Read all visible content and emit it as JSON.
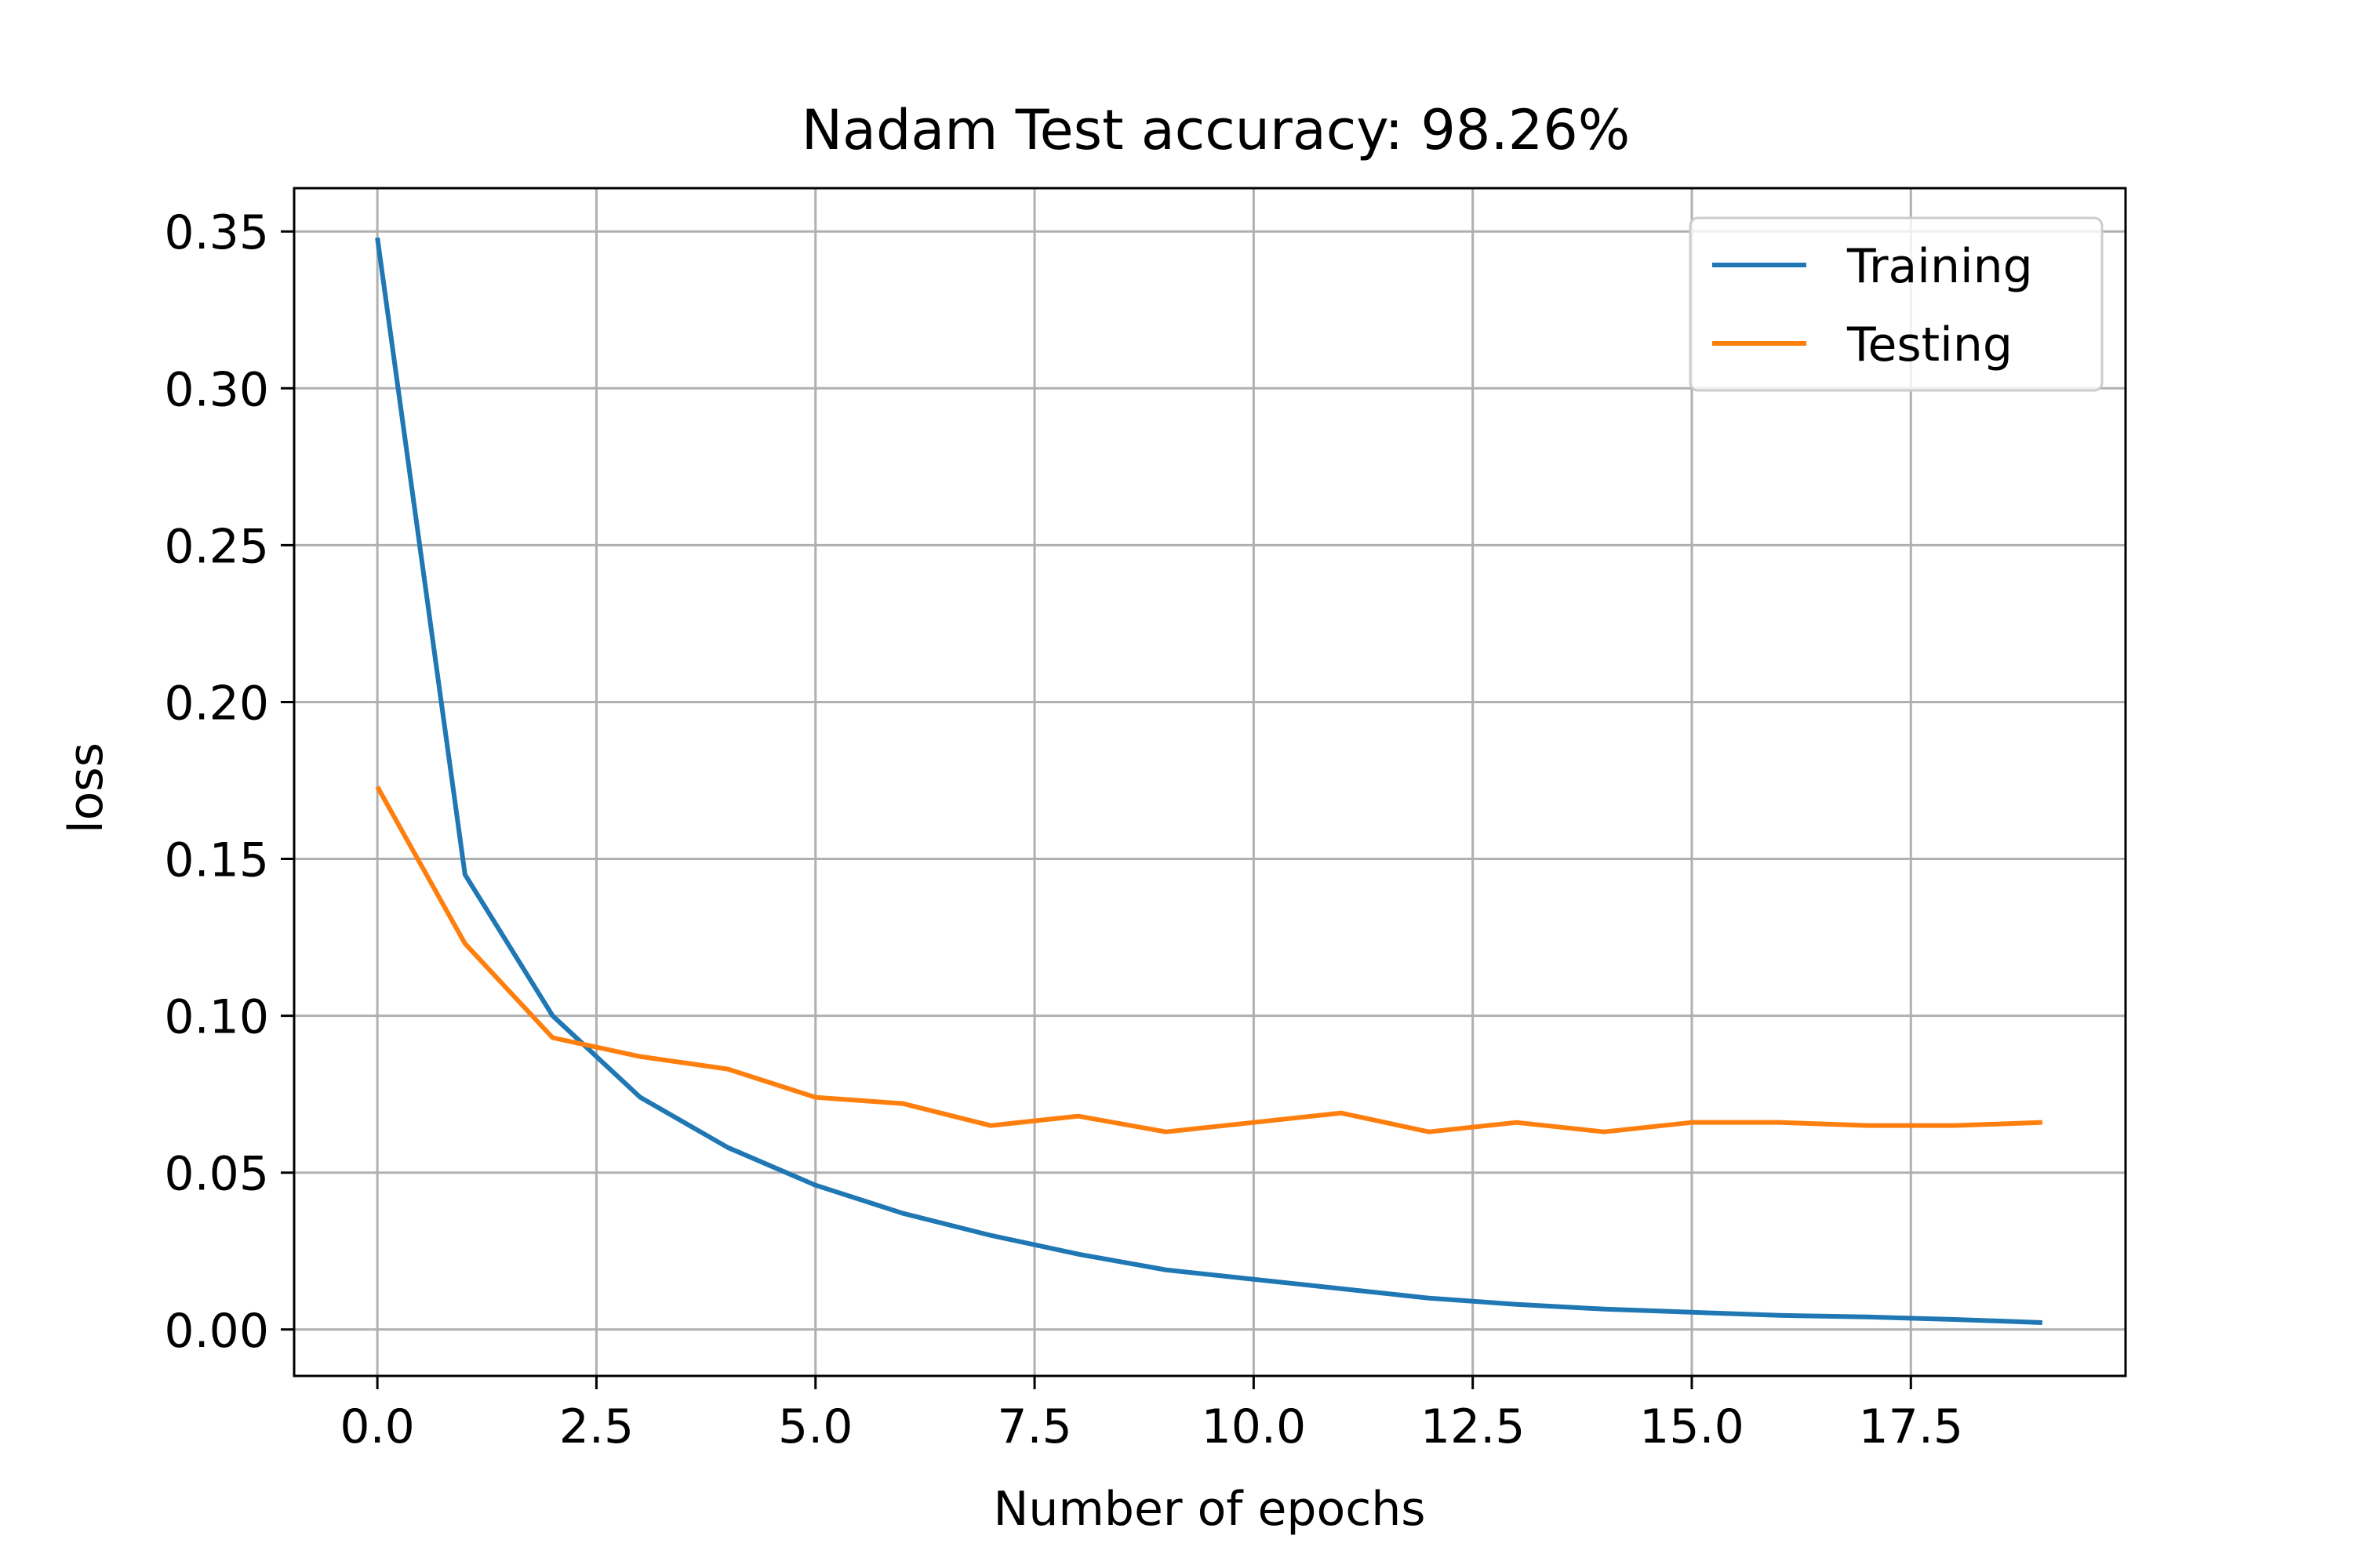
{
  "chart_data": {
    "type": "line",
    "title": "Nadam Test accuracy: 98.26%",
    "xlabel": "Number of epochs",
    "ylabel": "loss",
    "xlim": [
      -0.95,
      19.95
    ],
    "ylim": [
      -0.0148,
      0.3638
    ],
    "xticks": [
      0.0,
      2.5,
      5.0,
      7.5,
      10.0,
      12.5,
      15.0,
      17.5
    ],
    "xtick_labels": [
      "0.0",
      "2.5",
      "5.0",
      "7.5",
      "10.0",
      "12.5",
      "15.0",
      "17.5"
    ],
    "yticks": [
      0.0,
      0.05,
      0.1,
      0.15,
      0.2,
      0.25,
      0.3,
      0.35
    ],
    "ytick_labels": [
      "0.00",
      "0.05",
      "0.10",
      "0.15",
      "0.20",
      "0.25",
      "0.30",
      "0.35"
    ],
    "grid": true,
    "legend_position": "top-right",
    "x": [
      0,
      1,
      2,
      3,
      4,
      5,
      6,
      7,
      8,
      9,
      10,
      11,
      12,
      13,
      14,
      15,
      16,
      17,
      18,
      19
    ],
    "series": [
      {
        "name": "Training",
        "color": "#1f77b4",
        "values": [
          0.348,
          0.145,
          0.1,
          0.074,
          0.058,
          0.046,
          0.037,
          0.03,
          0.024,
          0.019,
          0.016,
          0.013,
          0.01,
          0.008,
          0.0065,
          0.0055,
          0.0045,
          0.004,
          0.0032,
          0.0022
        ]
      },
      {
        "name": "Testing",
        "color": "#ff7f0e",
        "values": [
          0.173,
          0.123,
          0.093,
          0.087,
          0.083,
          0.074,
          0.072,
          0.065,
          0.068,
          0.063,
          0.066,
          0.069,
          0.063,
          0.066,
          0.063,
          0.066,
          0.066,
          0.065,
          0.065,
          0.066
        ]
      }
    ]
  }
}
